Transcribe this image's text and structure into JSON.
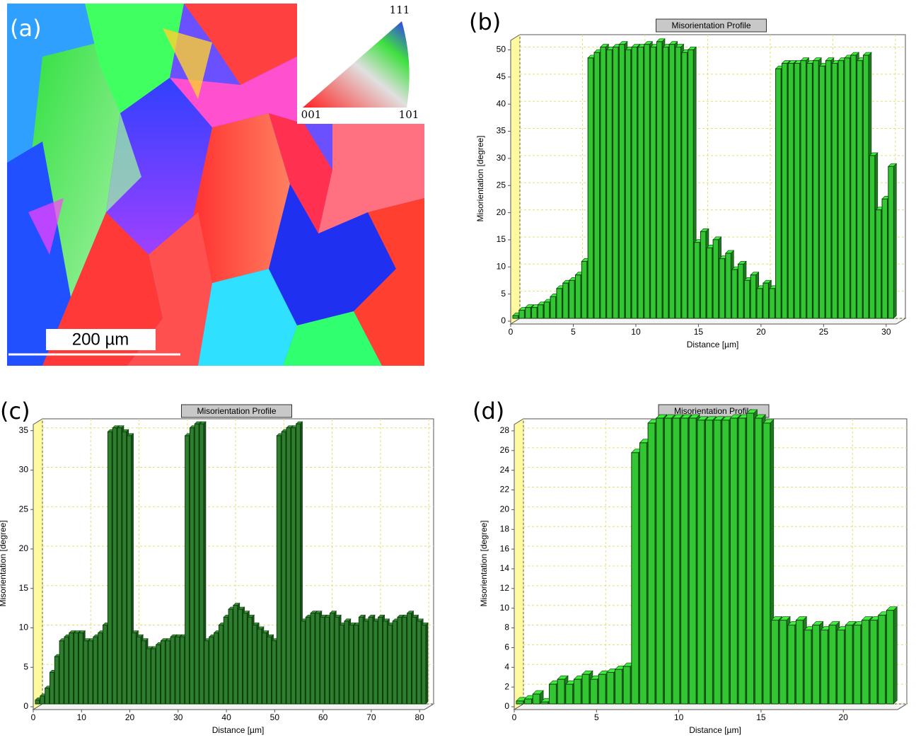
{
  "figure_a": {
    "label": "(a)",
    "ipf_labels": [
      "111",
      "001",
      "101"
    ],
    "scale_bar": "200 µm"
  },
  "chart_data": [
    {
      "type": "bar",
      "panel_label": "(b)",
      "title": "Misorientation Profile",
      "x_label": "Distance [µm]",
      "y_label": "Misorientation [degree]",
      "x": [
        0,
        0.5,
        1,
        1.5,
        2,
        2.5,
        3,
        3.5,
        4,
        4.5,
        5,
        5.5,
        6,
        6.5,
        7,
        7.5,
        8,
        8.5,
        9,
        9.5,
        10,
        10.5,
        11,
        11.5,
        12,
        12.5,
        13,
        13.5,
        14,
        14.5,
        15,
        15.5,
        16,
        16.5,
        17,
        17.5,
        18,
        18.5,
        19,
        19.5,
        20,
        20.5,
        21,
        21.5,
        22,
        22.5,
        23,
        23.5,
        24,
        24.5,
        25,
        25.5,
        26,
        26.5,
        27,
        27.5,
        28,
        28.5,
        29,
        29.5,
        30
      ],
      "values": [
        0.5,
        1.5,
        2,
        2,
        2.5,
        3,
        4,
        5.5,
        6.5,
        7,
        8,
        10.5,
        48,
        49,
        50,
        49.5,
        50,
        50.5,
        49.5,
        50,
        50,
        50.5,
        50,
        51,
        50,
        50.5,
        50,
        49,
        49.5,
        14,
        16,
        13,
        14.5,
        11,
        12,
        9,
        10,
        7,
        8,
        5.5,
        6.5,
        5.5,
        46,
        47,
        47,
        47,
        47.5,
        47,
        47.5,
        46.5,
        47.5,
        47,
        47.5,
        48,
        48.5,
        47.5,
        48.5,
        30,
        20,
        22,
        28
      ],
      "color": "#33c633",
      "xlim": [
        0,
        30.8
      ],
      "xticks": [
        0,
        5,
        10,
        15,
        20,
        25,
        30
      ],
      "ylim": [
        0,
        51.5
      ],
      "yticks": [
        0,
        5,
        10,
        15,
        20,
        25,
        30,
        35,
        40,
        45,
        50
      ],
      "grid": true
    },
    {
      "type": "bar",
      "panel_label": "(c)",
      "title": "Misorientation Profile",
      "x_label": "Distance [µm]",
      "y_label": "Misorientation [degree]",
      "x": [
        0,
        1,
        2,
        3,
        4,
        5,
        6,
        7,
        8,
        9,
        10,
        11,
        12,
        13,
        14,
        15,
        16,
        17,
        18,
        19,
        20,
        21,
        22,
        23,
        24,
        25,
        26,
        27,
        28,
        29,
        30,
        31,
        32,
        33,
        34,
        35,
        36,
        37,
        38,
        39,
        40,
        41,
        42,
        43,
        44,
        45,
        46,
        47,
        48,
        49,
        50,
        51,
        52,
        53,
        54,
        55,
        56,
        57,
        58,
        59,
        60,
        61,
        62,
        63,
        64,
        65,
        66,
        67,
        68,
        69,
        70,
        71,
        72,
        73,
        74,
        75,
        76,
        77,
        78,
        79,
        80
      ],
      "values": [
        0.5,
        1,
        2,
        4,
        6,
        8,
        8.5,
        9,
        9,
        9,
        8,
        8,
        8.5,
        9,
        10,
        34.5,
        35,
        35,
        34.5,
        34,
        9,
        8.5,
        8,
        7,
        7,
        7.5,
        8,
        8,
        8.5,
        8.5,
        8.5,
        34,
        35,
        35.5,
        35.5,
        8,
        8.5,
        9,
        10,
        11,
        12,
        12.5,
        12,
        11.5,
        11,
        10,
        9.5,
        9,
        8.5,
        8,
        34,
        34.5,
        35,
        35,
        35.5,
        10.5,
        11,
        11.5,
        11.5,
        11,
        11,
        11.5,
        11,
        10,
        10.5,
        10,
        10,
        11,
        10.5,
        11,
        10.5,
        11,
        10.5,
        10,
        10.5,
        11,
        11,
        11.5,
        11,
        10.5,
        10
      ],
      "color": "#2f7d2f",
      "xlim": [
        0,
        81
      ],
      "xticks": [
        0,
        10,
        20,
        30,
        40,
        50,
        60,
        70,
        80
      ],
      "ylim": [
        0,
        35.6
      ],
      "yticks": [
        0,
        5,
        10,
        15,
        20,
        25,
        30,
        35
      ],
      "grid": true
    },
    {
      "type": "bar",
      "panel_label": "(d)",
      "title": "Misorientation Profile",
      "x_label": "Distance [µm]",
      "y_label": "Misorientation [degree]",
      "x": [
        0,
        0.5,
        1,
        1.5,
        2,
        2.5,
        3,
        3.5,
        4,
        4.5,
        5,
        5.5,
        6,
        6.5,
        7,
        7.5,
        8,
        8.5,
        9,
        9.5,
        10,
        10.5,
        11,
        11.5,
        12,
        12.5,
        13,
        13.5,
        14,
        14.5,
        15,
        15.5,
        16,
        16.5,
        17,
        17.5,
        18,
        18.5,
        19,
        19.5,
        20,
        20.5,
        21,
        21.5,
        22,
        22.5
      ],
      "values": [
        0.3,
        0.5,
        1,
        0.2,
        2,
        2.5,
        2,
        2.5,
        3,
        2.5,
        3,
        3.2,
        3.5,
        3.8,
        25.5,
        26.5,
        28.5,
        29,
        29,
        29,
        29,
        29,
        28.8,
        28.8,
        28.8,
        28.8,
        29,
        29,
        29.5,
        29,
        28.5,
        8.5,
        8.5,
        8,
        8.5,
        7.5,
        8,
        7.5,
        8,
        7.5,
        8,
        8,
        8.5,
        8.5,
        9,
        9.5
      ],
      "color": "#33c633",
      "xlim": [
        0,
        23.3
      ],
      "xticks": [
        0,
        5,
        10,
        15,
        20
      ],
      "ylim": [
        0,
        28.5
      ],
      "yticks": [
        0,
        2,
        4,
        6,
        8,
        10,
        12,
        14,
        16,
        18,
        20,
        22,
        24,
        26,
        28
      ],
      "grid": true
    }
  ]
}
